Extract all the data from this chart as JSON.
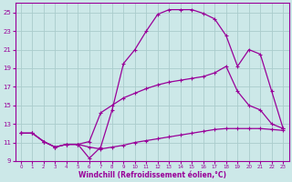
{
  "xlabel": "Windchill (Refroidissement éolien,°C)",
  "background_color": "#cce8e8",
  "grid_color": "#aacccc",
  "line_color": "#990099",
  "xlim": [
    -0.5,
    23.5
  ],
  "ylim": [
    9,
    26
  ],
  "yticks": [
    9,
    11,
    13,
    15,
    17,
    19,
    21,
    23,
    25
  ],
  "xticks": [
    0,
    1,
    2,
    3,
    4,
    5,
    6,
    7,
    8,
    9,
    10,
    11,
    12,
    13,
    14,
    15,
    16,
    17,
    18,
    19,
    20,
    21,
    22,
    23
  ],
  "series": [
    {
      "x": [
        0,
        1,
        2,
        3,
        4,
        5,
        6,
        7,
        8,
        9,
        10,
        11,
        12,
        13,
        14,
        15,
        16,
        17,
        18,
        19,
        20,
        21,
        22,
        23
      ],
      "y": [
        12.0,
        12.0,
        11.1,
        10.5,
        10.8,
        10.8,
        10.5,
        10.3,
        10.5,
        10.7,
        11.0,
        11.2,
        11.4,
        11.6,
        11.8,
        12.0,
        12.2,
        12.4,
        12.5,
        12.5,
        12.5,
        12.5,
        12.4,
        12.3
      ]
    },
    {
      "x": [
        0,
        1,
        2,
        3,
        4,
        5,
        6,
        7,
        8,
        9,
        10,
        11,
        12,
        13,
        14,
        15,
        16,
        17,
        18,
        19,
        20,
        21,
        22,
        23
      ],
      "y": [
        12.0,
        12.0,
        11.1,
        10.5,
        10.8,
        10.8,
        11.1,
        14.2,
        15.0,
        15.8,
        16.3,
        16.8,
        17.2,
        17.5,
        17.7,
        17.9,
        18.1,
        18.5,
        19.2,
        16.5,
        15.0,
        14.5,
        13.0,
        12.5
      ]
    },
    {
      "x": [
        0,
        1,
        2,
        3,
        4,
        5,
        6,
        7,
        8,
        9,
        10,
        11,
        12,
        13,
        14,
        15,
        16,
        17,
        18,
        19,
        20,
        21,
        22,
        23
      ],
      "y": [
        12.0,
        12.0,
        11.1,
        10.5,
        10.8,
        10.8,
        9.3,
        10.5,
        14.5,
        19.5,
        21.0,
        23.0,
        24.8,
        25.3,
        25.3,
        25.3,
        24.9,
        24.3,
        22.5,
        19.2,
        21.0,
        20.5,
        16.5,
        12.5
      ]
    }
  ]
}
